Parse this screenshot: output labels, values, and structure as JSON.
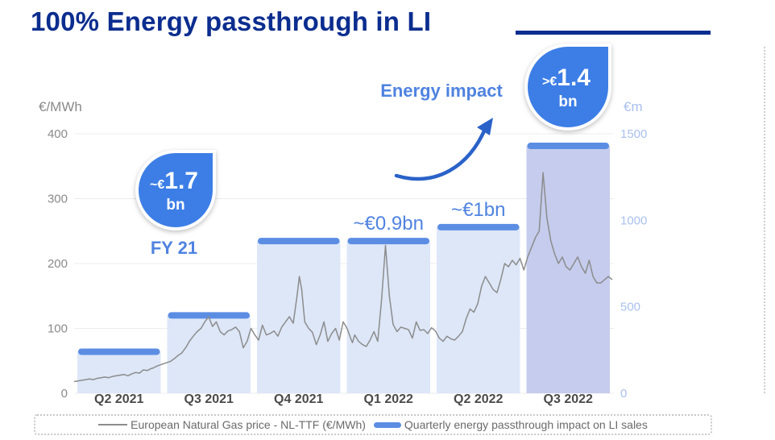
{
  "page": {
    "title": "100% Energy passthrough in LI"
  },
  "colors": {
    "title": "#0b2d8f",
    "bar_fill": "#dde7f8",
    "bar_fill_highlight": "#c5cced",
    "bar_cap": "#5b8de3",
    "bubble": "#3d7ee6",
    "annotation": "#4f83e0",
    "line": "#8c8c8c",
    "axis_left": "#8a8a8a",
    "axis_right": "#a9c0ee"
  },
  "annotations": {
    "energy_impact": "Energy impact",
    "fy21_label": "FY 21",
    "bubble_fy21": {
      "prefix": "~€",
      "value": "1.7",
      "unit": "bn"
    },
    "bubble_q3_2022": {
      "prefix": ">€",
      "value": "1.4",
      "unit": "bn"
    }
  },
  "chart_data": {
    "type": "bar",
    "categories": [
      "Q2 2021",
      "Q3 2021",
      "Q4 2021",
      "Q1 2022",
      "Q2 2022",
      "Q3 2022"
    ],
    "series": [
      {
        "name": "Quarterly energy passthrough impact on LI sales",
        "axis": "right",
        "values": [
          240,
          450,
          880,
          880,
          960,
          1430
        ],
        "data_labels": [
          "",
          "",
          "",
          "~€0.9bn",
          "~€1bn",
          ""
        ]
      },
      {
        "name": "European Natural Gas price - NL-TTF (€/MWh)",
        "axis": "left",
        "type": "line",
        "x": [
          0,
          0.05,
          0.1,
          0.15,
          0.2,
          0.25,
          0.3,
          0.35,
          0.4,
          0.45,
          0.5,
          0.55,
          0.6,
          0.65,
          0.7,
          0.75,
          0.8,
          0.85,
          0.88,
          0.9,
          0.95,
          1.0,
          1.03,
          1.06,
          1.1,
          1.15,
          1.2,
          1.25,
          1.3,
          1.35,
          1.4,
          1.45,
          1.5,
          1.55,
          1.6,
          1.65,
          1.7,
          1.75,
          1.8,
          1.85,
          1.9,
          1.95,
          2.0,
          2.05,
          2.1,
          2.15,
          2.2,
          2.25,
          2.3,
          2.35,
          2.4,
          2.45,
          2.5,
          2.55,
          2.6,
          2.65,
          2.7,
          2.75,
          2.8,
          2.85,
          2.9,
          2.93,
          2.96,
          3.0,
          3.05,
          3.1,
          3.15,
          3.2,
          3.25,
          3.3,
          3.35,
          3.4,
          3.45,
          3.5,
          3.55,
          3.6,
          3.62,
          3.65,
          3.7,
          3.75,
          3.8,
          3.85,
          3.9,
          3.95,
          4.0,
          4.05,
          4.1,
          4.15,
          4.2,
          4.25,
          4.3,
          4.35,
          4.4,
          4.45,
          4.5,
          4.55,
          4.6,
          4.65,
          4.7,
          4.75,
          4.8,
          4.85,
          4.9,
          4.95,
          5.0,
          5.05,
          5.1,
          5.15,
          5.2,
          5.25,
          5.3,
          5.35,
          5.4,
          5.45,
          5.5,
          5.55,
          5.6,
          5.65,
          5.7,
          5.75,
          5.8,
          5.85,
          5.9,
          5.95,
          6.0,
          6.05,
          6.1,
          6.15,
          6.2,
          6.25,
          6.3,
          6.35,
          6.4,
          6.45,
          6.5,
          6.55,
          6.6,
          6.65,
          6.7,
          6.75,
          6.8,
          6.85,
          6.9,
          6.95,
          7.0
        ],
        "values": [
          18,
          19,
          20,
          21,
          22,
          21,
          23,
          24,
          25,
          24,
          26,
          27,
          28,
          29,
          27,
          30,
          32,
          31,
          34,
          36,
          35,
          38,
          39,
          41,
          43,
          45,
          47,
          49,
          53,
          58,
          62,
          70,
          80,
          88,
          95,
          100,
          110,
          118,
          103,
          110,
          95,
          90,
          96,
          98,
          102,
          95,
          70,
          80,
          100,
          90,
          82,
          105,
          90,
          92,
          96,
          88,
          102,
          110,
          118,
          108,
          150,
          180,
          160,
          110,
          100,
          94,
          75,
          90,
          110,
          80,
          92,
          100,
          82,
          110,
          100,
          84,
          78,
          90,
          80,
          75,
          72,
          82,
          95,
          80,
          145,
          228,
          150,
          106,
          95,
          102,
          100,
          98,
          85,
          110,
          97,
          98,
          92,
          101,
          96,
          85,
          80,
          88,
          84,
          82,
          88,
          95,
          115,
          130,
          125,
          138,
          165,
          180,
          170,
          160,
          155,
          175,
          200,
          195,
          205,
          198,
          208,
          190,
          210,
          225,
          240,
          250,
          340,
          270,
          235,
          215,
          200,
          210,
          195,
          190,
          200,
          210,
          195,
          185,
          205,
          180,
          170,
          170,
          175,
          180,
          175
        ]
      }
    ],
    "title": "100% Energy passthrough in LI",
    "y_left": {
      "label": "€/MWh",
      "ticks": [
        "0",
        "100",
        "200",
        "300",
        "400"
      ],
      "range": [
        0,
        400
      ]
    },
    "y_right": {
      "label": "€m",
      "ticks": [
        "0",
        "500",
        "1000",
        "1500"
      ],
      "range": [
        0,
        1500
      ]
    },
    "legend": [
      "European Natural Gas price - NL-TTF (€/MWh)",
      "Quarterly energy passthrough impact on LI sales"
    ],
    "grid": true,
    "highlight_category": "Q3 2022"
  }
}
